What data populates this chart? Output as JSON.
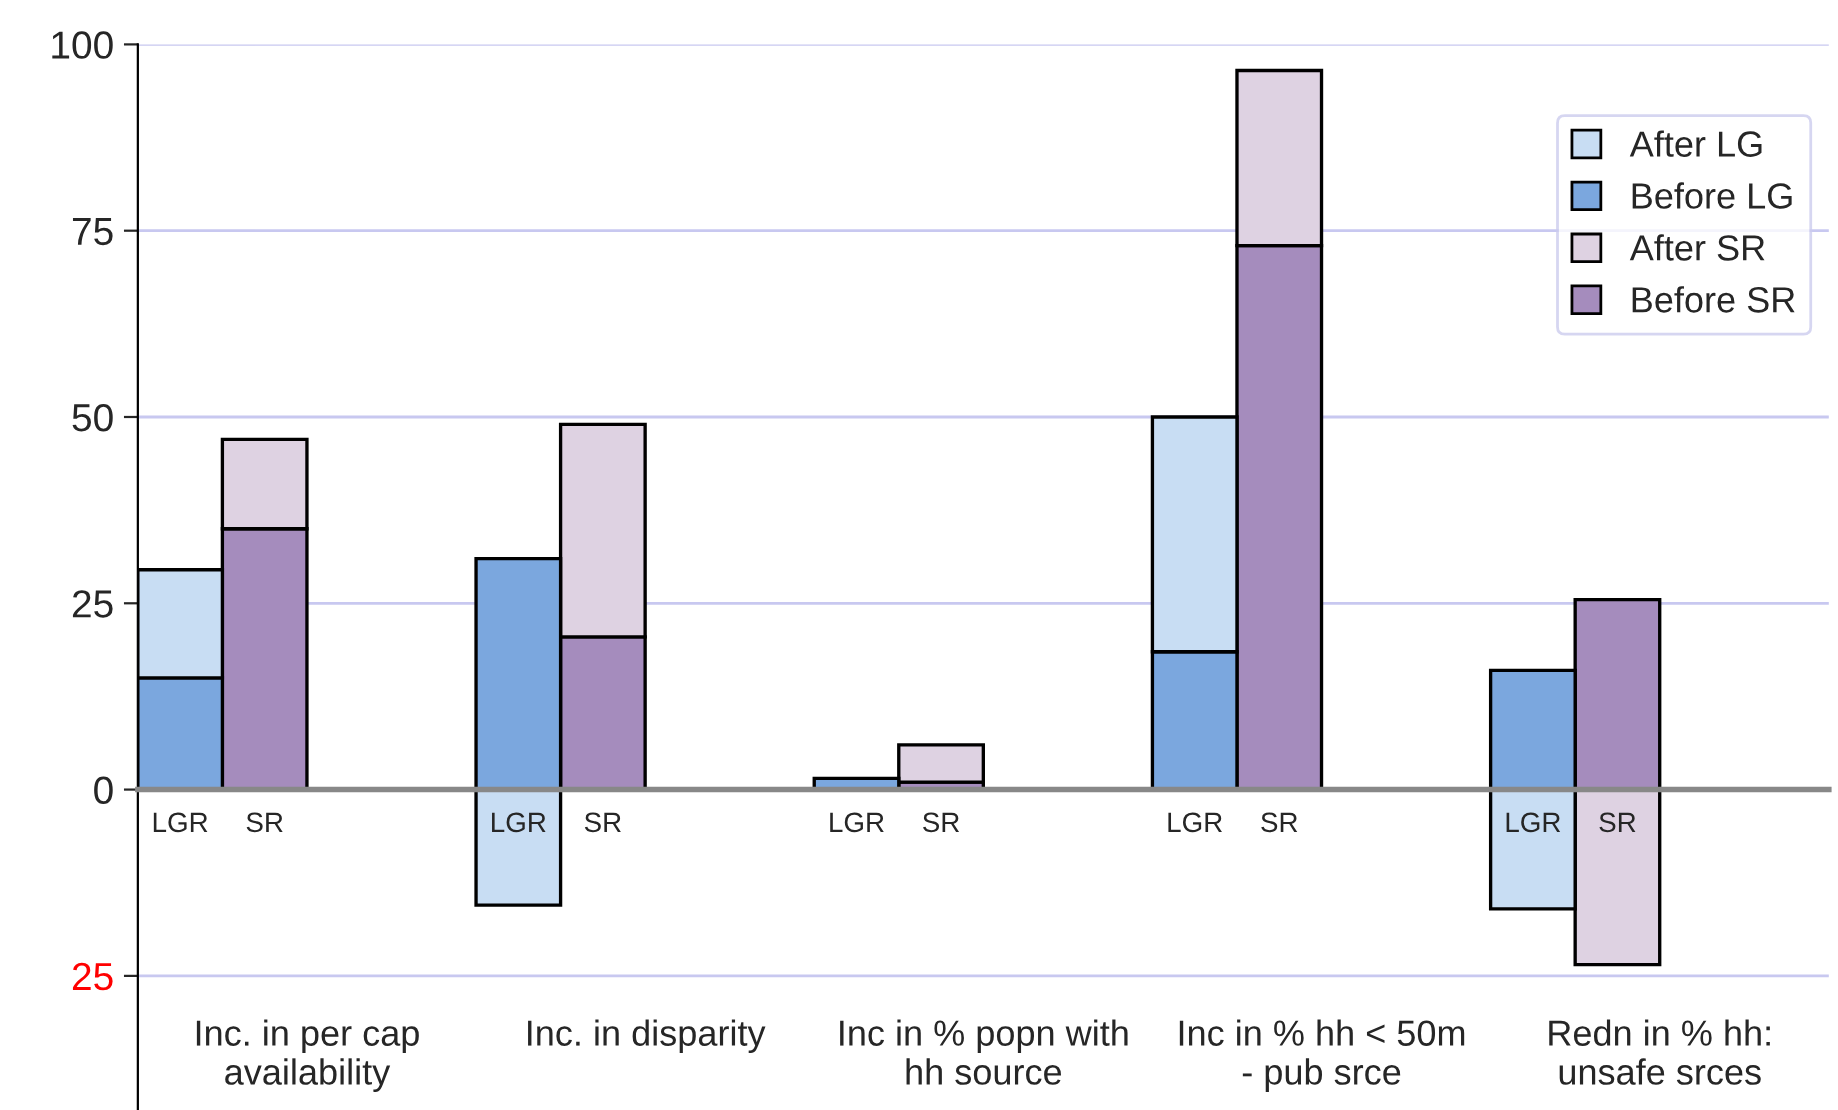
{
  "chart_data": {
    "type": "bar",
    "stacked": true,
    "categories": [
      "LGR",
      "SR",
      null,
      null,
      "LGR",
      "SR",
      null,
      null,
      "LGR",
      "SR",
      null,
      null,
      "LGR",
      "SR",
      null,
      null,
      "LGR",
      "SR",
      null,
      null
    ],
    "series": [
      {
        "name": "Before SR",
        "color": "#a58cbd",
        "values": [
          null,
          35,
          null,
          null,
          null,
          20.5,
          null,
          null,
          null,
          1,
          null,
          null,
          null,
          73,
          null,
          null,
          null,
          25.5,
          null,
          null
        ]
      },
      {
        "name": "After SR",
        "color": "#ded2e2",
        "values": [
          null,
          12,
          null,
          null,
          null,
          28.5,
          null,
          null,
          null,
          5,
          null,
          null,
          null,
          23.5,
          null,
          null,
          null,
          -23.5,
          null,
          null
        ]
      },
      {
        "name": "Before LG",
        "color": "#7ba7de",
        "values": [
          15,
          null,
          null,
          null,
          31,
          null,
          null,
          null,
          1.5,
          null,
          null,
          null,
          18.5,
          null,
          null,
          null,
          16,
          null,
          null,
          null
        ]
      },
      {
        "name": "After LG",
        "color": "#c8ddf3",
        "values": [
          14.5,
          null,
          null,
          null,
          -15.5,
          null,
          null,
          null,
          null,
          null,
          null,
          null,
          31.5,
          null,
          null,
          null,
          -16,
          null,
          null,
          null
        ]
      }
    ],
    "ylim": [
      -43,
      100
    ],
    "yticks": [
      {
        "value": -25,
        "label": "25"
      },
      0,
      25,
      50,
      75,
      100
    ],
    "grid": "y",
    "legend": "top right",
    "annotations": [
      "Inc. in per cap availability",
      "Inc. in disparity",
      "Inc in % popn with hh source",
      "Inc in % hh < 50m - pub srce",
      "Redn in % hh: unsafe srces"
    ]
  }
}
